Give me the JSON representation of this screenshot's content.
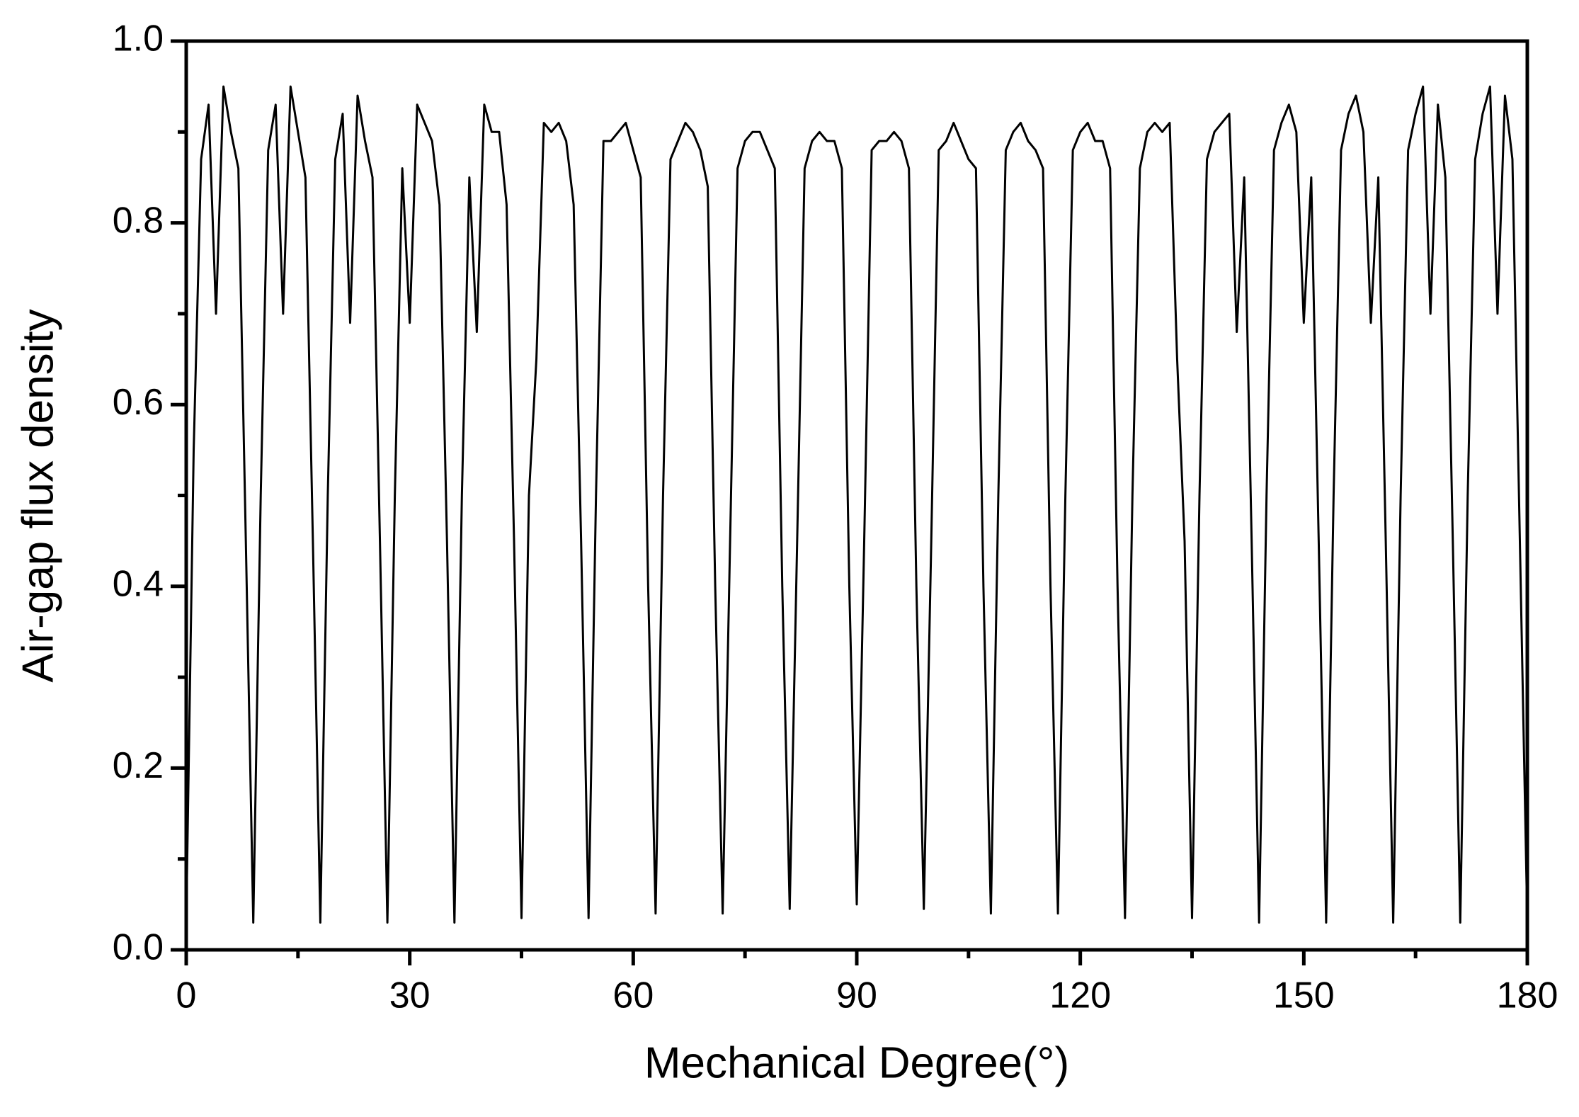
{
  "chart_data": {
    "type": "line",
    "xlabel": "Mechanical Degree(°)",
    "ylabel": "Air-gap flux density",
    "x": [
      0,
      1,
      2,
      3,
      4,
      5,
      6,
      7,
      8,
      9,
      10,
      11,
      12,
      13,
      14,
      15,
      16,
      17,
      18,
      19,
      20,
      21,
      22,
      23,
      24,
      25,
      26,
      27,
      28,
      29,
      30,
      31,
      32,
      33,
      34,
      35,
      36,
      37,
      38,
      39,
      40,
      41,
      42,
      43,
      44,
      45,
      46,
      47,
      48,
      49,
      50,
      51,
      52,
      53,
      54,
      55,
      56,
      57,
      58,
      59,
      60,
      61,
      62,
      63,
      64,
      65,
      66,
      67,
      68,
      69,
      70,
      71,
      72,
      73,
      74,
      75,
      76,
      77,
      78,
      79,
      80,
      81,
      82,
      83,
      84,
      85,
      86,
      87,
      88,
      89,
      90,
      91,
      92,
      93,
      94,
      95,
      96,
      97,
      98,
      99,
      100,
      101,
      102,
      103,
      104,
      105,
      106,
      107,
      108,
      109,
      110,
      111,
      112,
      113,
      114,
      115,
      116,
      117,
      118,
      119,
      120,
      121,
      122,
      123,
      124,
      125,
      126,
      127,
      128,
      129,
      130,
      131,
      132,
      133,
      134,
      135,
      136,
      137,
      138,
      139,
      140,
      141,
      142,
      143,
      144,
      145,
      146,
      147,
      148,
      149,
      150,
      151,
      152,
      153,
      154,
      155,
      156,
      157,
      158,
      159,
      160,
      161,
      162,
      163,
      164,
      165,
      166,
      167,
      168,
      169,
      170,
      171,
      172,
      173,
      174,
      175,
      176,
      177,
      178,
      179,
      180
    ],
    "series": [
      {
        "color": "#000000",
        "values": [
          0.03,
          0.55,
          0.87,
          0.93,
          0.7,
          0.95,
          0.9,
          0.86,
          0.45,
          0.03,
          0.5,
          0.88,
          0.93,
          0.7,
          0.95,
          0.9,
          0.85,
          0.45,
          0.03,
          0.5,
          0.87,
          0.92,
          0.69,
          0.94,
          0.89,
          0.85,
          0.45,
          0.03,
          0.5,
          0.86,
          0.69,
          0.93,
          0.91,
          0.89,
          0.82,
          0.45,
          0.03,
          0.5,
          0.85,
          0.68,
          0.93,
          0.9,
          0.9,
          0.82,
          0.45,
          0.035,
          0.5,
          0.65,
          0.91,
          0.9,
          0.91,
          0.89,
          0.82,
          0.45,
          0.035,
          0.5,
          0.89,
          0.89,
          0.9,
          0.91,
          0.88,
          0.85,
          0.4,
          0.04,
          0.5,
          0.87,
          0.89,
          0.91,
          0.9,
          0.88,
          0.84,
          0.4,
          0.04,
          0.45,
          0.86,
          0.89,
          0.9,
          0.9,
          0.88,
          0.86,
          0.4,
          0.045,
          0.45,
          0.86,
          0.89,
          0.9,
          0.89,
          0.89,
          0.86,
          0.4,
          0.05,
          0.45,
          0.88,
          0.89,
          0.89,
          0.9,
          0.89,
          0.86,
          0.4,
          0.045,
          0.45,
          0.88,
          0.89,
          0.91,
          0.89,
          0.87,
          0.86,
          0.4,
          0.04,
          0.5,
          0.88,
          0.9,
          0.91,
          0.89,
          0.88,
          0.86,
          0.4,
          0.04,
          0.5,
          0.88,
          0.9,
          0.91,
          0.89,
          0.89,
          0.86,
          0.4,
          0.035,
          0.5,
          0.86,
          0.9,
          0.91,
          0.9,
          0.91,
          0.65,
          0.45,
          0.035,
          0.5,
          0.87,
          0.9,
          0.91,
          0.92,
          0.68,
          0.85,
          0.45,
          0.03,
          0.5,
          0.88,
          0.91,
          0.93,
          0.9,
          0.69,
          0.85,
          0.45,
          0.03,
          0.5,
          0.88,
          0.92,
          0.94,
          0.9,
          0.69,
          0.85,
          0.45,
          0.03,
          0.5,
          0.88,
          0.92,
          0.95,
          0.7,
          0.93,
          0.85,
          0.45,
          0.03,
          0.5,
          0.87,
          0.92,
          0.95,
          0.7,
          0.94,
          0.87,
          0.45,
          0.03
        ]
      }
    ],
    "xlim": [
      0,
      180
    ],
    "xticks": [
      0,
      30,
      60,
      90,
      120,
      150,
      180
    ],
    "xminorticks": [
      15,
      45,
      75,
      105,
      135,
      165
    ],
    "ylim": [
      0,
      1
    ],
    "yticks": [
      {
        "value": 0,
        "label": "0.0"
      },
      0.2,
      0.4,
      0.6,
      0.8,
      {
        "value": 1,
        "label": "1.0"
      }
    ],
    "yminorticks": [
      0.1,
      0.3,
      0.5,
      0.7,
      0.9
    ]
  }
}
